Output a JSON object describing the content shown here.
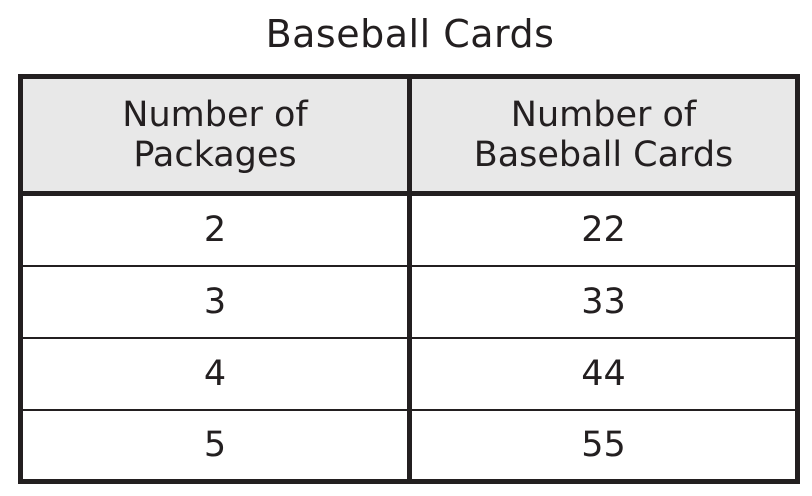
{
  "title": "Baseball Cards",
  "table": {
    "headers": [
      [
        "Number of",
        "Packages"
      ],
      [
        "Number of",
        "Baseball Cards"
      ]
    ],
    "rows": [
      [
        "2",
        "22"
      ],
      [
        "3",
        "33"
      ],
      [
        "4",
        "44"
      ],
      [
        "5",
        "55"
      ]
    ]
  }
}
